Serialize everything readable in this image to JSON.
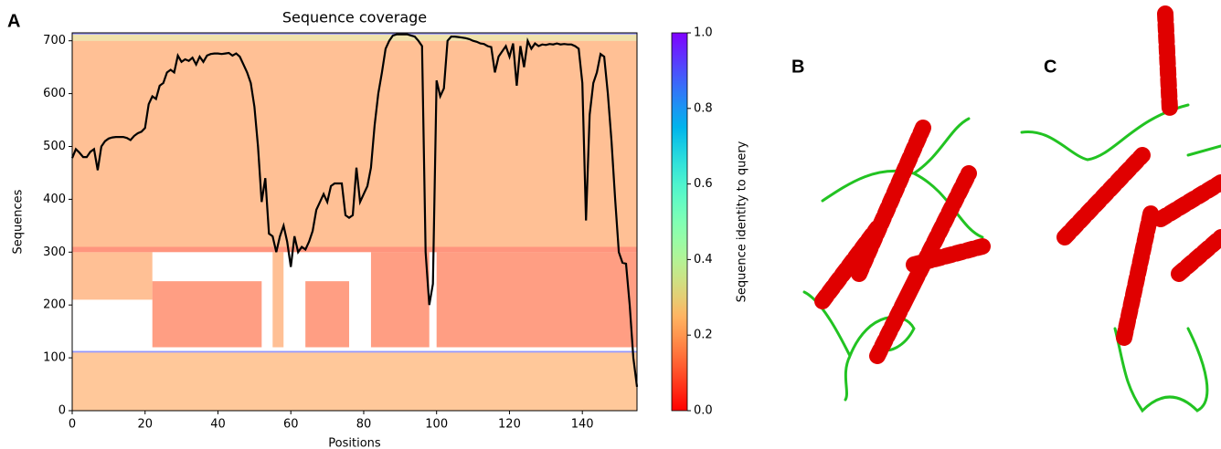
{
  "panel_labels": [
    "A",
    "B",
    "C"
  ],
  "chart_data": {
    "type": "coverage",
    "title": "Sequence coverage",
    "x_label": "Positions",
    "y_label": "Sequences",
    "colorbar_label": "Sequence identity to query",
    "xlim": [
      0,
      155
    ],
    "ylim": [
      0,
      715
    ],
    "xticks": [
      0,
      20,
      40,
      60,
      80,
      100,
      120,
      140
    ],
    "yticks": [
      0,
      100,
      200,
      300,
      400,
      500,
      600,
      700
    ],
    "clim": [
      0,
      1
    ],
    "cticks": [
      {
        "value": 0,
        "label": "0.0"
      },
      0.2,
      0.4,
      0.6,
      0.8,
      {
        "value": 1,
        "label": "1.0"
      }
    ],
    "regions": [
      {
        "x": [
          0,
          155
        ],
        "y": [
          0,
          110
        ],
        "identity": 0.22
      },
      {
        "x": [
          0,
          155
        ],
        "y": [
          110,
          113
        ],
        "identity": 0.9
      },
      {
        "x": [
          0,
          22
        ],
        "y": [
          210,
          300
        ],
        "identity": 0.2
      },
      {
        "x": [
          22,
          52
        ],
        "y": [
          120,
          245
        ],
        "identity": 0.12
      },
      {
        "x": [
          55,
          58
        ],
        "y": [
          120,
          300
        ],
        "identity": 0.2
      },
      {
        "x": [
          64,
          76
        ],
        "y": [
          120,
          245
        ],
        "identity": 0.12
      },
      {
        "x": [
          82,
          98
        ],
        "y": [
          120,
          300
        ],
        "identity": 0.12
      },
      {
        "x": [
          100,
          155
        ],
        "y": [
          120,
          300
        ],
        "identity": 0.12
      },
      {
        "x": [
          0,
          155
        ],
        "y": [
          300,
          310
        ],
        "identity": 0.1
      },
      {
        "x": [
          0,
          155
        ],
        "y": [
          310,
          700
        ],
        "identity": 0.2
      },
      {
        "x": [
          0,
          155
        ],
        "y": [
          700,
          712
        ],
        "identity": 0.3
      },
      {
        "x": [
          0,
          155
        ],
        "y": [
          712,
          715
        ],
        "identity": 0.9
      }
    ],
    "x": [
      0,
      1,
      2,
      3,
      4,
      5,
      6,
      7,
      8,
      9,
      10,
      11,
      12,
      13,
      14,
      15,
      16,
      17,
      18,
      19,
      20,
      21,
      22,
      23,
      24,
      25,
      26,
      27,
      28,
      29,
      30,
      31,
      32,
      33,
      34,
      35,
      36,
      37,
      38,
      39,
      40,
      41,
      42,
      43,
      44,
      45,
      46,
      47,
      48,
      49,
      50,
      51,
      52,
      53,
      54,
      55,
      56,
      57,
      58,
      59,
      60,
      61,
      62,
      63,
      64,
      65,
      66,
      67,
      68,
      69,
      70,
      71,
      72,
      73,
      74,
      75,
      76,
      77,
      78,
      79,
      80,
      81,
      82,
      83,
      84,
      85,
      86,
      87,
      88,
      89,
      90,
      91,
      92,
      93,
      94,
      95,
      96,
      97,
      98,
      99,
      100,
      101,
      102,
      103,
      104,
      105,
      106,
      107,
      108,
      109,
      110,
      111,
      112,
      113,
      114,
      115,
      116,
      117,
      118,
      119,
      120,
      121,
      122,
      123,
      124,
      125,
      126,
      127,
      128,
      129,
      130,
      131,
      132,
      133,
      134,
      135,
      136,
      137,
      138,
      139,
      140,
      141,
      142,
      143,
      144,
      145,
      146,
      147,
      148,
      149,
      150,
      151,
      152,
      153,
      154,
      155
    ],
    "values": [
      478,
      495,
      488,
      480,
      480,
      490,
      495,
      455,
      500,
      510,
      515,
      517,
      518,
      518,
      518,
      516,
      512,
      520,
      525,
      528,
      535,
      580,
      595,
      590,
      615,
      620,
      640,
      645,
      640,
      672,
      660,
      665,
      662,
      668,
      655,
      670,
      660,
      672,
      675,
      676,
      676,
      675,
      676,
      677,
      672,
      676,
      670,
      655,
      640,
      620,
      575,
      500,
      395,
      440,
      335,
      330,
      300,
      330,
      350,
      320,
      272,
      330,
      300,
      310,
      305,
      320,
      340,
      380,
      395,
      410,
      395,
      425,
      430,
      430,
      430,
      370,
      365,
      370,
      460,
      395,
      410,
      425,
      460,
      540,
      600,
      640,
      685,
      700,
      710,
      712,
      712,
      712,
      712,
      710,
      708,
      700,
      690,
      300,
      200,
      240,
      625,
      595,
      610,
      700,
      708,
      708,
      707,
      706,
      705,
      703,
      700,
      698,
      695,
      694,
      690,
      688,
      640,
      670,
      680,
      690,
      670,
      695,
      615,
      690,
      650,
      700,
      685,
      695,
      690,
      693,
      692,
      694,
      693,
      695,
      693,
      694,
      693,
      693,
      690,
      685,
      620,
      360,
      560,
      620,
      640,
      675,
      670,
      600,
      510,
      400,
      300,
      280,
      278,
      200,
      100,
      45
    ],
    "line_color": "#000000"
  }
}
